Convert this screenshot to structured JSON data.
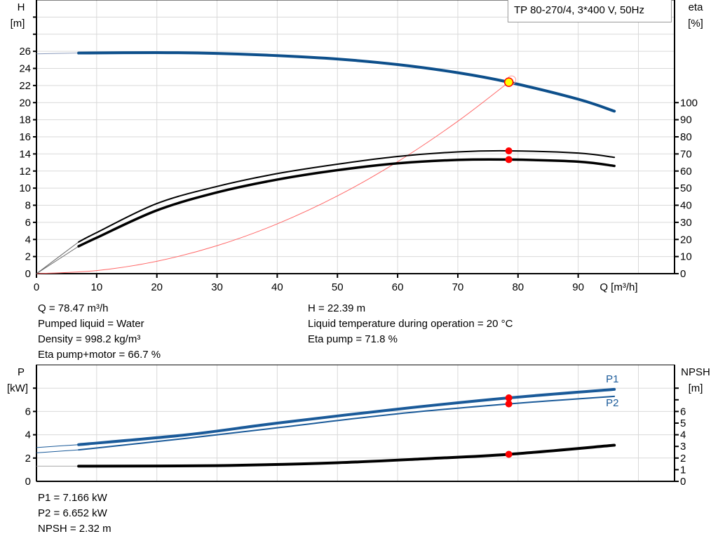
{
  "title": "TP 80-270/4, 3*400 V, 50Hz",
  "colors": {
    "head": "#0d4f8b",
    "eta": "#000000",
    "system": "#ff6666",
    "power": "#1a5a99",
    "npsh": "#000000",
    "point": "#ff0000",
    "duty_point_fill": "#ffff00",
    "grid": "#d9d9d9"
  },
  "chart_data": [
    {
      "type": "line",
      "x_label": "Q [m³/h]",
      "y_left_label": [
        "H",
        "[m]"
      ],
      "y_right_label": [
        "eta",
        "[%]"
      ],
      "xlim": [
        0,
        106
      ],
      "ylim_left": [
        0,
        32
      ],
      "ylim_right": [
        0,
        160
      ],
      "x_ticks": [
        0,
        10,
        20,
        30,
        40,
        50,
        60,
        70,
        80,
        90
      ],
      "y_left_ticks": [
        0,
        2,
        4,
        6,
        8,
        10,
        12,
        14,
        16,
        18,
        20,
        22,
        24,
        26
      ],
      "y_right_ticks": [
        0,
        10,
        20,
        30,
        40,
        50,
        60,
        70,
        80,
        90,
        100
      ],
      "grid": true,
      "series": [
        {
          "key": "H",
          "axis": "left",
          "x": [
            0,
            7,
            20,
            30,
            40,
            50,
            60,
            70,
            78.47,
            90,
            96
          ],
          "y": [
            25.7,
            25.8,
            25.85,
            25.75,
            25.5,
            25.1,
            24.45,
            23.5,
            22.39,
            20.4,
            19.0
          ]
        },
        {
          "key": "eta_pump",
          "axis": "right",
          "x": [
            0,
            7,
            10,
            20,
            30,
            40,
            50,
            60,
            70,
            78.47,
            90,
            96
          ],
          "y": [
            0,
            18.5,
            24,
            41,
            51,
            58.5,
            64,
            68.5,
            71.2,
            71.8,
            70.5,
            68
          ]
        },
        {
          "key": "eta_pump_motor",
          "axis": "right",
          "x": [
            0,
            7,
            10,
            20,
            30,
            40,
            50,
            60,
            70,
            78.47,
            90,
            96
          ],
          "y": [
            0,
            16,
            21,
            37,
            47.5,
            55,
            60.5,
            64.5,
            66.5,
            66.7,
            65.5,
            63
          ]
        },
        {
          "key": "system_curve",
          "axis": "left",
          "x": [
            0,
            10,
            20,
            30,
            40,
            50,
            60,
            70,
            78.47
          ],
          "y": [
            0,
            0.36,
            1.45,
            3.27,
            5.82,
            9.09,
            13.09,
            17.82,
            22.39
          ]
        }
      ],
      "duty_point": {
        "Q": 78.47,
        "H": 22.39,
        "eta_pump": 71.8,
        "eta_pump_motor": 66.7
      }
    },
    {
      "type": "line",
      "y_left_label": [
        "P",
        "[kW]"
      ],
      "y_right_label": [
        "NPSH",
        "[m]"
      ],
      "xlim": [
        0,
        106
      ],
      "ylim_left": [
        0,
        10
      ],
      "ylim_right": [
        0,
        10
      ],
      "y_left_ticks": [
        0,
        2,
        4,
        6
      ],
      "y_right_ticks": [
        0,
        1,
        2,
        3,
        4,
        5,
        6
      ],
      "grid": true,
      "series": [
        {
          "key": "P1",
          "name": "P1",
          "axis": "left",
          "x": [
            0,
            7,
            25,
            40,
            60,
            78.47,
            96
          ],
          "y": [
            2.9,
            3.15,
            4.0,
            5.0,
            6.2,
            7.166,
            7.9
          ]
        },
        {
          "key": "P2",
          "name": "P2",
          "axis": "left",
          "x": [
            0,
            7,
            25,
            40,
            60,
            78.47,
            96
          ],
          "y": [
            2.45,
            2.7,
            3.7,
            4.6,
            5.8,
            6.652,
            7.3
          ]
        },
        {
          "key": "NPSH",
          "axis": "right",
          "x": [
            0,
            7,
            30,
            50,
            65,
            78.47,
            96
          ],
          "y": [
            1.3,
            1.3,
            1.35,
            1.6,
            1.95,
            2.32,
            3.1
          ]
        }
      ]
    }
  ],
  "results_top": {
    "left": [
      "Q = 78.47 m³/h",
      "Pumped liquid = Water",
      "Density = 998.2 kg/m³",
      "Eta pump+motor = 66.7 %"
    ],
    "right": [
      "H = 22.39 m",
      "Liquid temperature during operation = 20 °C",
      "Eta pump = 71.8 %"
    ]
  },
  "results_bottom": [
    "P1 = 7.166 kW",
    "P2 = 6.652 kW",
    "NPSH = 2.32 m"
  ]
}
